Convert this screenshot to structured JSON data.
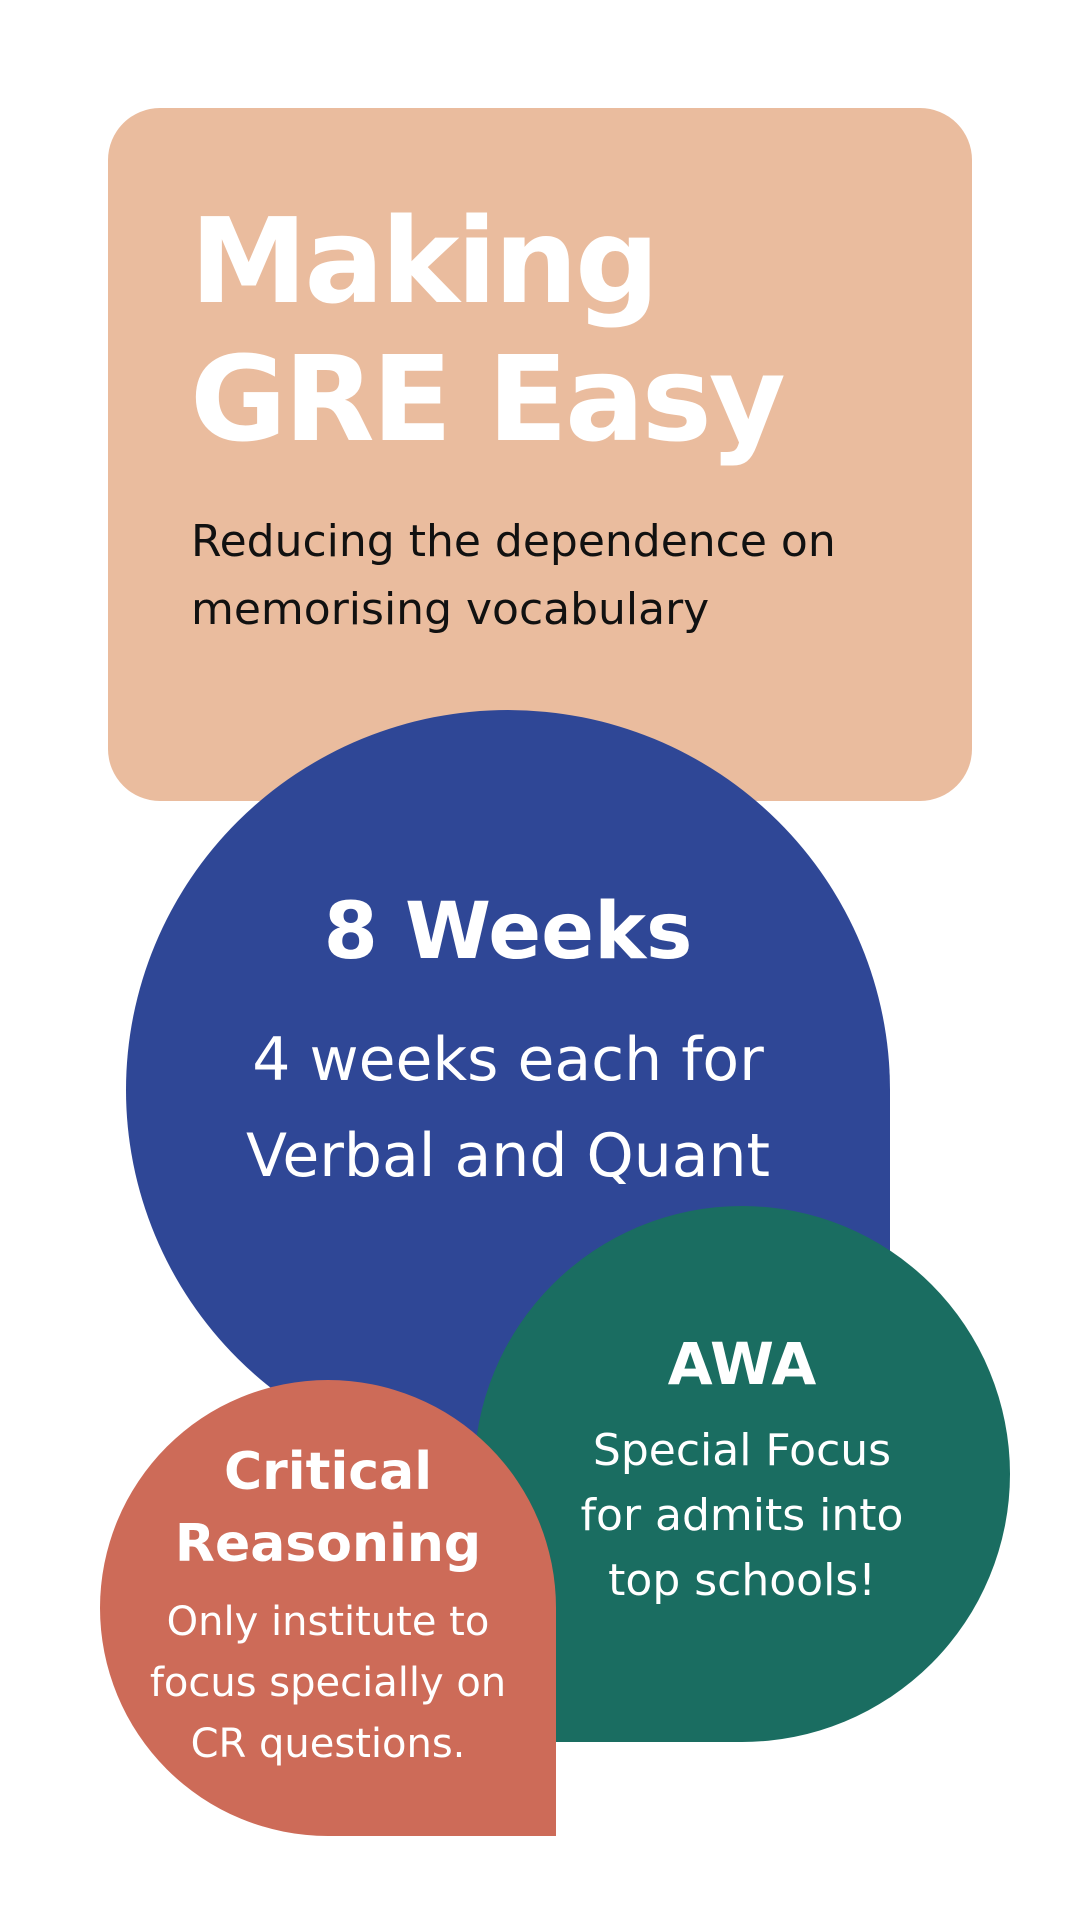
{
  "header": {
    "title_lines": [
      "Making",
      "GRE Easy"
    ],
    "subtitle_lines": [
      "Reducing the dependence on",
      "memorising vocabulary"
    ],
    "background_color": "#eabc9e"
  },
  "weeks_block": {
    "title": "8 Weeks",
    "description_lines": [
      "4 weeks each for",
      "Verbal and Quant"
    ],
    "background_color": "#2f4796"
  },
  "awa_block": {
    "title": "AWA",
    "description_lines": [
      "Special Focus",
      "for admits into",
      "top schools!"
    ],
    "background_color": "#1a6d61"
  },
  "critical_reasoning_block": {
    "title_lines": [
      "Critical",
      "Reasoning"
    ],
    "description_lines": [
      "Only institute to",
      "focus specially on",
      "CR questions."
    ],
    "background_color": "#cd6b58"
  }
}
